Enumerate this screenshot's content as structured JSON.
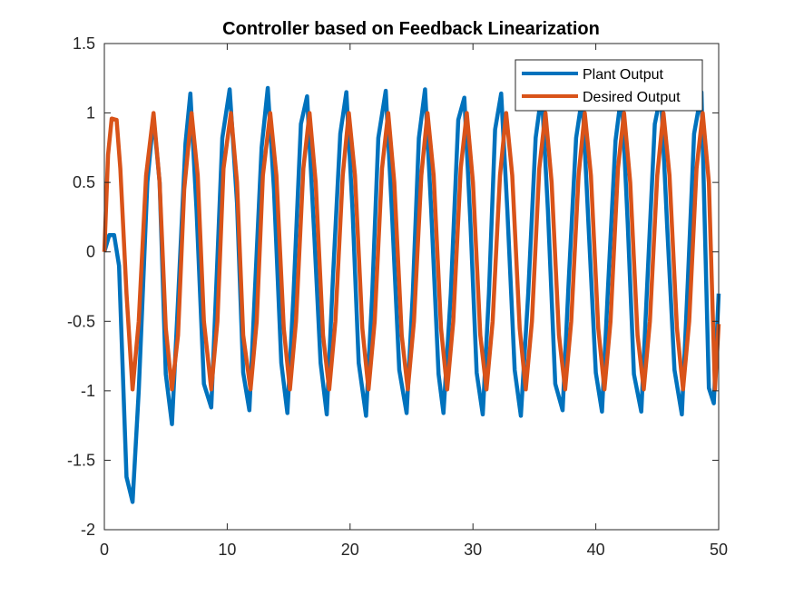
{
  "chart_data": {
    "type": "line",
    "title": "Controller based on Feedback Linearization",
    "xlabel": "",
    "ylabel": "",
    "xlim": [
      0,
      50
    ],
    "ylim": [
      -2,
      1.5
    ],
    "xticks": [
      0,
      10,
      20,
      30,
      40,
      50
    ],
    "yticks": [
      -2,
      -1.5,
      -1,
      -0.5,
      0,
      0.5,
      1,
      1.5
    ],
    "xtick_labels": [
      "0",
      "10",
      "20",
      "30",
      "40",
      "50"
    ],
    "ytick_labels": [
      "-2",
      "-1.5",
      "-1",
      "-0.5",
      "0",
      "0.5",
      "1",
      "1.5"
    ],
    "grid": false,
    "legend_position": "top-right",
    "series": [
      {
        "name": "Plant Output",
        "color": "#0072BD",
        "x": [
          0,
          0.4,
          0.8,
          1.2,
          1.8,
          2.3,
          2.8,
          3.5,
          4.0,
          4.5,
          5.0,
          5.5,
          6.0,
          6.6,
          7.0,
          7.5,
          8.1,
          8.7,
          9.2,
          9.6,
          10.2,
          10.8,
          11.3,
          11.8,
          12.3,
          12.8,
          13.3,
          13.8,
          14.4,
          14.9,
          15.4,
          16.0,
          16.5,
          17.1,
          17.6,
          18.1,
          18.6,
          19.2,
          19.7,
          20.2,
          20.7,
          21.3,
          21.8,
          22.3,
          22.9,
          23.4,
          24.0,
          24.6,
          25.1,
          25.6,
          26.1,
          26.6,
          27.2,
          27.6,
          28.2,
          28.8,
          29.3,
          29.8,
          30.3,
          30.8,
          31.3,
          31.8,
          32.3,
          32.8,
          33.4,
          33.9,
          34.5,
          35.1,
          35.6,
          36.1,
          36.7,
          37.3,
          37.8,
          38.4,
          38.9,
          39.4,
          40.0,
          40.5,
          41.0,
          41.6,
          42.1,
          42.6,
          43.1,
          43.7,
          44.2,
          44.8,
          45.3,
          45.8,
          46.4,
          47.0,
          47.5,
          48.0,
          48.6,
          49.2,
          49.6,
          50.0
        ],
        "values": [
          0,
          0.12,
          0.12,
          -0.1,
          -1.62,
          -1.8,
          -1.0,
          0.5,
          0.97,
          0.5,
          -0.88,
          -1.24,
          -0.35,
          0.78,
          1.14,
          0.3,
          -0.95,
          -1.12,
          -0.05,
          0.82,
          1.17,
          0.35,
          -0.87,
          -1.14,
          -0.2,
          0.75,
          1.18,
          0.45,
          -0.8,
          -1.16,
          -0.3,
          0.92,
          1.12,
          0.1,
          -0.8,
          -1.17,
          -0.2,
          0.85,
          1.15,
          0.3,
          -0.8,
          -1.18,
          -0.3,
          0.82,
          1.16,
          0.3,
          -0.85,
          -1.16,
          -0.3,
          0.82,
          1.17,
          0.3,
          -0.88,
          -1.16,
          -0.3,
          0.95,
          1.11,
          0.2,
          -0.87,
          -1.17,
          -0.3,
          0.88,
          1.14,
          0.3,
          -0.85,
          -1.18,
          -0.3,
          0.82,
          1.15,
          0.3,
          -0.95,
          -1.14,
          -0.2,
          0.82,
          1.12,
          0.2,
          -0.87,
          -1.15,
          -0.25,
          0.8,
          1.15,
          0.2,
          -0.88,
          -1.15,
          -0.2,
          0.92,
          1.14,
          0.2,
          -0.85,
          -1.17,
          -0.2,
          0.85,
          1.15,
          -0.98,
          -1.09,
          -0.3
        ]
      },
      {
        "name": "Desired Output",
        "color": "#D95319",
        "x": [
          0,
          0.3,
          0.6,
          1.0,
          1.3,
          1.8,
          2.3,
          2.8,
          3.4,
          4.0,
          4.5,
          5.0,
          5.5,
          6.0,
          6.5,
          7.1,
          7.6,
          8.1,
          8.7,
          9.2,
          9.7,
          10.3,
          10.8,
          11.3,
          11.9,
          12.4,
          12.9,
          13.5,
          14.0,
          14.6,
          15.1,
          15.6,
          16.2,
          16.7,
          17.2,
          17.8,
          18.3,
          18.8,
          19.4,
          19.9,
          20.4,
          21.0,
          21.5,
          22.0,
          22.6,
          23.1,
          23.6,
          24.2,
          24.7,
          25.2,
          25.8,
          26.3,
          26.8,
          27.4,
          27.9,
          28.4,
          29.0,
          29.5,
          30.0,
          30.6,
          31.1,
          31.6,
          32.2,
          32.7,
          33.2,
          33.8,
          34.3,
          34.8,
          35.4,
          35.9,
          36.4,
          37.0,
          37.5,
          38.0,
          38.6,
          39.1,
          39.6,
          40.2,
          40.7,
          41.2,
          41.8,
          42.3,
          42.8,
          43.4,
          43.9,
          44.4,
          45.0,
          45.5,
          46.0,
          46.6,
          47.1,
          47.6,
          48.2,
          48.7,
          49.2,
          49.7,
          50.0
        ],
        "values": [
          0,
          0.7,
          0.96,
          0.95,
          0.6,
          -0.3,
          -0.99,
          -0.5,
          0.55,
          1.0,
          0.5,
          -0.55,
          -0.99,
          -0.6,
          0.45,
          1.0,
          0.55,
          -0.5,
          -0.99,
          -0.5,
          0.6,
          1.0,
          0.5,
          -0.6,
          -0.99,
          -0.5,
          0.55,
          1.0,
          0.55,
          -0.55,
          -0.99,
          -0.5,
          0.6,
          1.0,
          0.5,
          -0.6,
          -0.99,
          -0.5,
          0.55,
          1.0,
          0.55,
          -0.55,
          -0.99,
          -0.5,
          0.6,
          1.0,
          0.5,
          -0.6,
          -0.99,
          -0.5,
          0.55,
          1.0,
          0.55,
          -0.55,
          -0.99,
          -0.5,
          0.6,
          1.0,
          0.5,
          -0.6,
          -0.99,
          -0.5,
          0.55,
          1.0,
          0.55,
          -0.55,
          -0.99,
          -0.5,
          0.6,
          1.0,
          0.5,
          -0.6,
          -0.99,
          -0.5,
          0.55,
          1.0,
          0.55,
          -0.55,
          -0.99,
          -0.5,
          0.6,
          1.0,
          0.5,
          -0.6,
          -0.99,
          -0.5,
          0.55,
          1.0,
          0.55,
          -0.55,
          -0.99,
          -0.5,
          0.6,
          1.0,
          0.5,
          -0.99,
          -0.52
        ]
      }
    ]
  }
}
